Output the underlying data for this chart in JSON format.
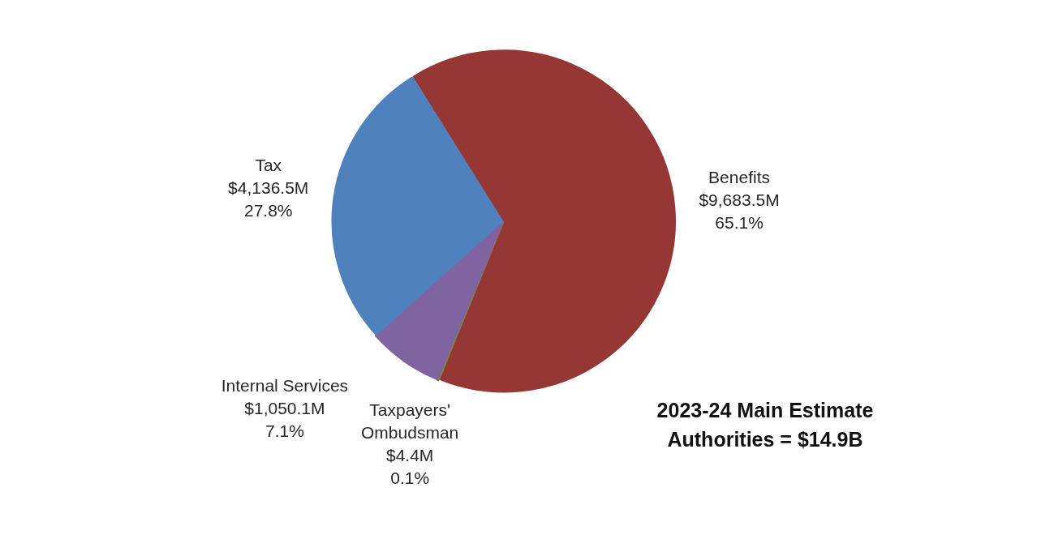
{
  "chart_data": {
    "type": "pie",
    "categories": [
      "Benefits",
      "Taxpayers' Ombudsman",
      "Internal Services",
      "Tax"
    ],
    "values": [
      65.1,
      0.1,
      7.1,
      27.8
    ],
    "colors": [
      "#953735",
      "#77933c",
      "#8064a2",
      "#4f81bd"
    ],
    "value_labels": [
      "$9,683.5M\n65.1%",
      "$4.4M\n0.1%",
      "$1,050.1M\n7.1%",
      "$4,136.5M\n27.8%"
    ],
    "annotations": [
      "2023-24 Main Estimate Authorities = $14.9B"
    ]
  }
}
